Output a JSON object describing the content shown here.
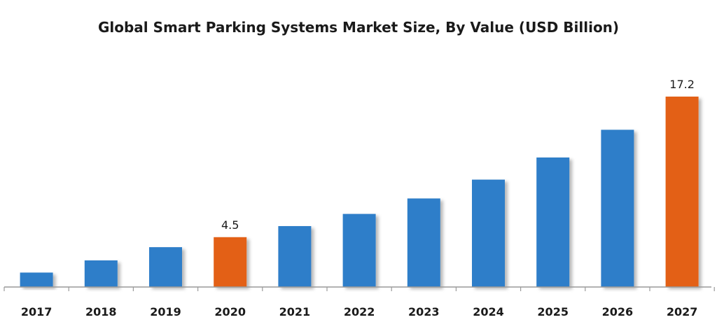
{
  "chart_data": {
    "type": "bar",
    "title": "Global Smart Parking Systems Market Size, By Value (USD Billion)",
    "categories": [
      "2017",
      "2018",
      "2019",
      "2020",
      "2021",
      "2022",
      "2023",
      "2024",
      "2025",
      "2026",
      "2027"
    ],
    "values": [
      1.3,
      2.4,
      3.6,
      4.5,
      5.5,
      6.6,
      8.0,
      9.7,
      11.7,
      14.2,
      17.2
    ],
    "data_labels": {
      "3": "4.5",
      "10": "17.2"
    },
    "highlight": [
      3,
      10
    ],
    "colors": {
      "default": "#2f7ec9",
      "highlight": "#e36012",
      "axis": "#9a9a9a"
    },
    "ylim": [
      0,
      17.2
    ],
    "grid": false,
    "legend": "none"
  }
}
